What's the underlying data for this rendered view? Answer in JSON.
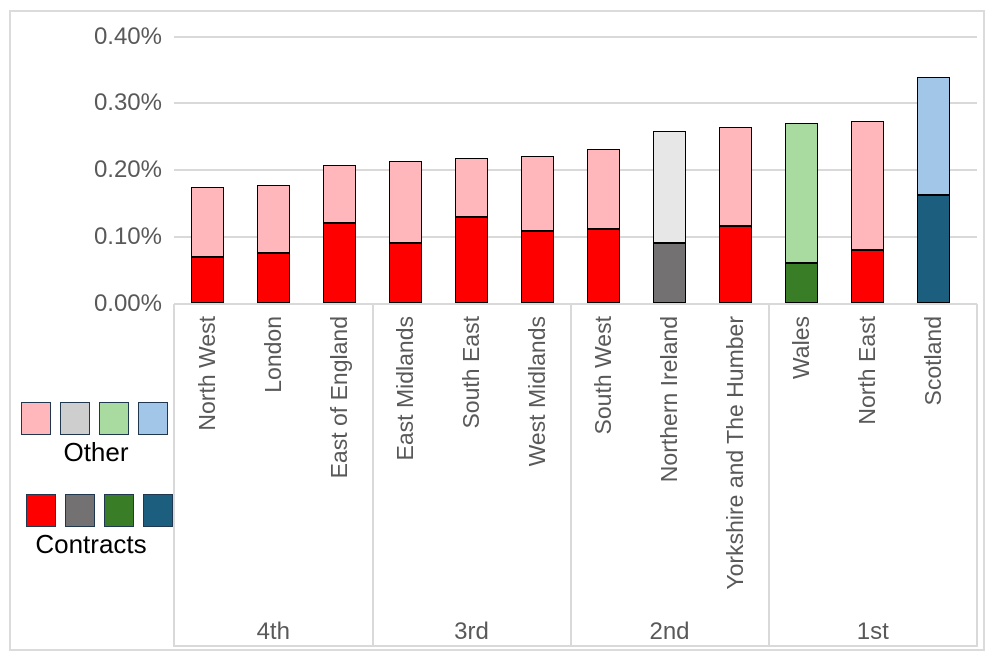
{
  "chart_data": {
    "type": "bar",
    "stacked": true,
    "title": "",
    "xlabel": "",
    "ylabel": "",
    "unit": "%",
    "ylim": [
      0,
      0.4
    ],
    "grid": true,
    "y_ticks": [
      {
        "value": 0.0,
        "label": "0.00%"
      },
      {
        "value": 0.1,
        "label": "0.10%"
      },
      {
        "value": 0.2,
        "label": "0.20%"
      },
      {
        "value": 0.3,
        "label": "0.30%"
      },
      {
        "value": 0.4,
        "label": "0.40%"
      }
    ],
    "categories": [
      "North West",
      "London",
      "East of England",
      "East Midlands",
      "South East",
      "West Midlands",
      "South West",
      "Northern Ireland",
      "Yorkshire and The Humber",
      "Wales",
      "North East",
      "Scotland"
    ],
    "category_groups": [
      "4th",
      "4th",
      "4th",
      "3rd",
      "3rd",
      "3rd",
      "2nd",
      "2nd",
      "2nd",
      "1st",
      "1st",
      "1st"
    ],
    "group_labels": [
      "4th",
      "3rd",
      "2nd",
      "1st"
    ],
    "series": [
      {
        "name": "Contracts",
        "values": [
          0.07,
          0.076,
          0.12,
          0.09,
          0.129,
          0.109,
          0.111,
          0.09,
          0.116,
          0.061,
          0.08,
          0.162
        ]
      },
      {
        "name": "Other",
        "values": [
          0.104,
          0.101,
          0.088,
          0.124,
          0.089,
          0.112,
          0.121,
          0.169,
          0.149,
          0.209,
          0.194,
          0.178
        ]
      }
    ],
    "color_scheme_per_category": [
      "red",
      "red",
      "red",
      "red",
      "red",
      "red",
      "red",
      "gray",
      "red",
      "green",
      "red",
      "blue"
    ],
    "colors": {
      "red": {
        "contracts": "#FF0000",
        "other": "#FFB7BC"
      },
      "gray": {
        "contracts": "#737171",
        "other": "#E8E7E7"
      },
      "green": {
        "contracts": "#3A7D27",
        "other": "#A9DBA0"
      },
      "blue": {
        "contracts": "#1B5E7D",
        "other": "#A2C6E8"
      }
    },
    "legend_position": "bottom-left"
  },
  "legend": {
    "other_label": "Other",
    "contracts_label": "Contracts",
    "other_swatches": [
      "#FFB7BC",
      "#CFCECE",
      "#A9DBA0",
      "#A2C6E8"
    ],
    "contracts_swatches": [
      "#FF0000",
      "#737171",
      "#3A7D27",
      "#1B5E7D"
    ]
  },
  "style_colors": {
    "gridline": "#D9D9D9",
    "chart_border": "#DBDBDB",
    "axis_text": "#595959",
    "bar_outline": "#000000",
    "swatch_outline": "#1F3850"
  }
}
